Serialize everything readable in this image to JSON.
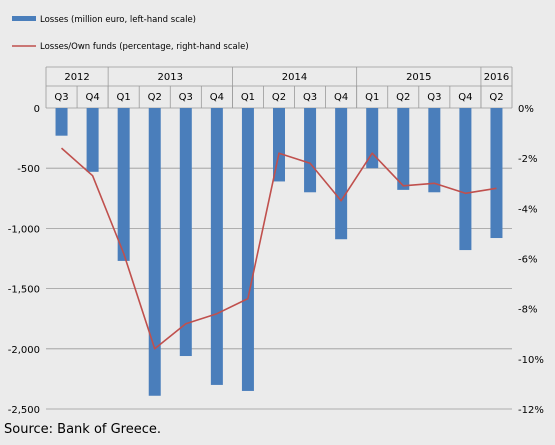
{
  "chart_data": {
    "type": "bar",
    "legend": [
      {
        "label": "Losses (million euro, left-hand scale)",
        "kind": "bar",
        "color": "#4a7ebb"
      },
      {
        "label": "Losses/Own funds (percentage, right-hand scale)",
        "kind": "line",
        "color": "#c0504d"
      }
    ],
    "legend_position": "top-left",
    "years": [
      {
        "label": "2012",
        "quarters": 2
      },
      {
        "label": "2013",
        "quarters": 4
      },
      {
        "label": "2014",
        "quarters": 4
      },
      {
        "label": "2015",
        "quarters": 4
      },
      {
        "label": "2016",
        "quarters": 1
      }
    ],
    "categories": [
      "Q3",
      "Q4",
      "Q1",
      "Q2",
      "Q3",
      "Q4",
      "Q1",
      "Q2",
      "Q3",
      "Q4",
      "Q1",
      "Q2",
      "Q3",
      "Q4",
      "Q2"
    ],
    "series": [
      {
        "name": "Losses (million euro, left-hand scale)",
        "type": "bar",
        "axis": "left",
        "color": "#4a7ebb",
        "values": [
          -230,
          -530,
          -1270,
          -2390,
          -2060,
          -2300,
          -2350,
          -610,
          -700,
          -1090,
          -500,
          -680,
          -700,
          -1180,
          -1080
        ]
      },
      {
        "name": "Losses/Own funds (percentage, right-hand scale)",
        "type": "line",
        "axis": "right",
        "color": "#c0504d",
        "values": [
          -1.6,
          -2.7,
          -5.8,
          -9.6,
          -8.6,
          -8.2,
          -7.6,
          -1.8,
          -2.2,
          -3.7,
          -1.8,
          -3.1,
          -3.0,
          -3.4,
          -3.2
        ]
      }
    ],
    "left_axis": {
      "range": [
        -2500,
        0
      ],
      "ticks": [
        0,
        -500,
        -1000,
        -1500,
        -2000,
        -2500
      ],
      "tick_labels": [
        "0",
        "-500",
        "-1,000",
        "-1,500",
        "-2,000",
        "-2,500"
      ]
    },
    "right_axis": {
      "range": [
        -12,
        0
      ],
      "ticks": [
        0,
        -2,
        -4,
        -6,
        -8,
        -10,
        -12
      ],
      "tick_labels": [
        "0%",
        "-2%",
        "-4%",
        "-6%",
        "-8%",
        "-10%",
        "-12%"
      ]
    },
    "grid": true
  },
  "source": "Source: Bank of Greece."
}
